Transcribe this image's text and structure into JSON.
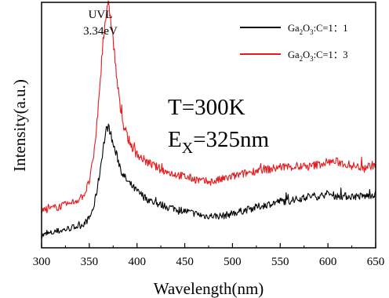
{
  "chart_data": {
    "type": "line",
    "xlabel": "Wavelength(nm)",
    "ylabel": "Intensity(a.u.)",
    "xlim": [
      300,
      650
    ],
    "x_ticks": [
      300,
      350,
      400,
      450,
      500,
      550,
      600,
      650
    ],
    "y_ticks_labeled": false,
    "grid": false,
    "legend_position": "top-right",
    "peak_annotation": {
      "line1": "UVL",
      "line2": "3.34eV",
      "x": 370
    },
    "conditions": {
      "temperature": "T=300K",
      "excitation_prefix": "E",
      "excitation_sub": "X",
      "excitation_value": "=325nm"
    },
    "series": [
      {
        "name": "Ga2O3:C=1：1",
        "legend_parts": [
          "Ga",
          "2",
          "O",
          "3",
          ":C=1：1"
        ],
        "color": "#000000",
        "x": [
          300,
          310,
          320,
          330,
          340,
          345,
          350,
          355,
          360,
          365,
          368,
          370,
          372,
          375,
          380,
          385,
          390,
          395,
          400,
          410,
          420,
          430,
          440,
          450,
          460,
          470,
          480,
          490,
          500,
          510,
          520,
          530,
          540,
          550,
          560,
          570,
          580,
          590,
          600,
          610,
          620,
          630,
          640,
          650
        ],
        "y": [
          0.05,
          0.06,
          0.07,
          0.08,
          0.09,
          0.1,
          0.12,
          0.17,
          0.28,
          0.42,
          0.48,
          0.5,
          0.47,
          0.42,
          0.36,
          0.3,
          0.27,
          0.25,
          0.23,
          0.2,
          0.18,
          0.17,
          0.16,
          0.15,
          0.14,
          0.13,
          0.13,
          0.13,
          0.14,
          0.15,
          0.16,
          0.17,
          0.18,
          0.19,
          0.19,
          0.2,
          0.21,
          0.21,
          0.22,
          0.21,
          0.21,
          0.21,
          0.21,
          0.22
        ]
      },
      {
        "name": "Ga2O3:C=1：3",
        "legend_parts": [
          "Ga",
          "2",
          "O",
          "3",
          ":C=1：3"
        ],
        "color": "#e41a1c",
        "x": [
          300,
          310,
          320,
          330,
          340,
          345,
          350,
          355,
          360,
          364,
          367,
          370,
          372,
          375,
          378,
          382,
          386,
          390,
          395,
          400,
          410,
          420,
          430,
          440,
          450,
          460,
          470,
          480,
          490,
          500,
          510,
          520,
          530,
          540,
          550,
          560,
          570,
          580,
          590,
          600,
          610,
          620,
          630,
          640,
          650
        ],
        "y": [
          0.15,
          0.16,
          0.17,
          0.18,
          0.2,
          0.22,
          0.27,
          0.38,
          0.6,
          0.82,
          0.94,
          0.98,
          0.95,
          0.85,
          0.72,
          0.58,
          0.5,
          0.45,
          0.41,
          0.38,
          0.35,
          0.33,
          0.31,
          0.3,
          0.29,
          0.28,
          0.27,
          0.27,
          0.28,
          0.29,
          0.3,
          0.31,
          0.32,
          0.32,
          0.33,
          0.33,
          0.33,
          0.33,
          0.34,
          0.35,
          0.35,
          0.34,
          0.33,
          0.33,
          0.34
        ]
      }
    ]
  }
}
